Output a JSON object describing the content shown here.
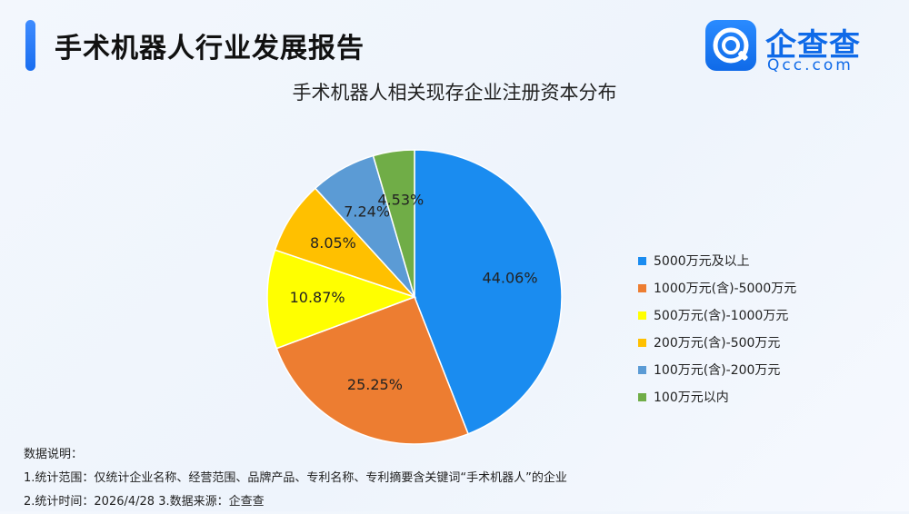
{
  "header": {
    "title": "手术机器人行业发展报告",
    "logo_name": "企查查",
    "logo_domain": "Qcc.com",
    "brand_color": "#0f6ae8"
  },
  "chart_data": {
    "type": "pie",
    "title": "手术机器人相关现存企业注册资本分布",
    "categories": [
      "5000万元及以上",
      "1000万元(含)-5000万元",
      "500万元(含)-1000万元",
      "200万元(含)-500万元",
      "100万元(含)-200万元",
      "100万元以内"
    ],
    "values": [
      44.06,
      25.25,
      10.87,
      8.05,
      7.24,
      4.53
    ],
    "labels": [
      "44.06%",
      "25.25%",
      "10.87%",
      "8.05%",
      "7.24%",
      "4.53%"
    ],
    "colors": [
      "#1a8cf0",
      "#ed7d31",
      "#ffff00",
      "#ffc000",
      "#5b9bd5",
      "#70ad47"
    ],
    "legend": "right"
  },
  "notes": {
    "heading": "数据说明：",
    "line1": "1.统计范围：仅统计企业名称、经营范围、品牌产品、专利名称、专利摘要含关键词“手术机器人”的企业",
    "line2": "2.统计时间：2026/4/28  3.数据来源：企查查"
  }
}
